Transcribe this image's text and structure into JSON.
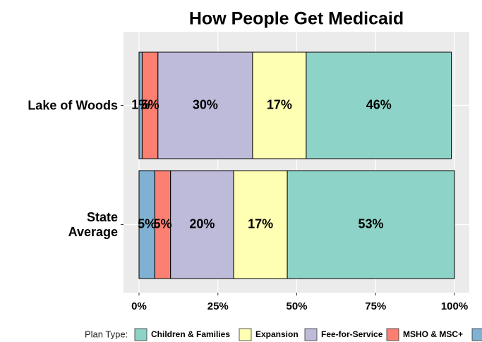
{
  "chart_data": {
    "type": "stacked-barh",
    "title": "How People Get Medicaid",
    "categories": [
      "Lake of Woods",
      "State\nAverage"
    ],
    "series": [
      {
        "name": null,
        "color": "#80b1d3",
        "values": [
          1,
          5
        ],
        "value_labels": [
          "1%",
          "5%"
        ]
      },
      {
        "name": "MSHO & MSC+",
        "color": "#fb8072",
        "values": [
          5,
          5
        ],
        "value_labels": [
          "5%",
          "5%"
        ]
      },
      {
        "name": "Fee-for-Service",
        "color": "#bebada",
        "values": [
          30,
          20
        ],
        "value_labels": [
          "30%",
          "20%"
        ]
      },
      {
        "name": "Expansion",
        "color": "#ffffb3",
        "values": [
          17,
          17
        ],
        "value_labels": [
          "17%",
          "17%"
        ]
      },
      {
        "name": "Children & Families",
        "color": "#8dd3c7",
        "values": [
          46,
          53
        ],
        "value_labels": [
          "46%",
          "53%"
        ]
      }
    ],
    "xlim": [
      0,
      100
    ],
    "xticks": [
      {
        "value": 0,
        "label": "0%"
      },
      {
        "value": 25,
        "label": "25%"
      },
      {
        "value": 50,
        "label": "50%"
      },
      {
        "value": 75,
        "label": "75%"
      },
      {
        "value": 100,
        "label": "100%"
      }
    ],
    "legend_title": "Plan Type:",
    "legend": "bottom",
    "grid": true
  }
}
